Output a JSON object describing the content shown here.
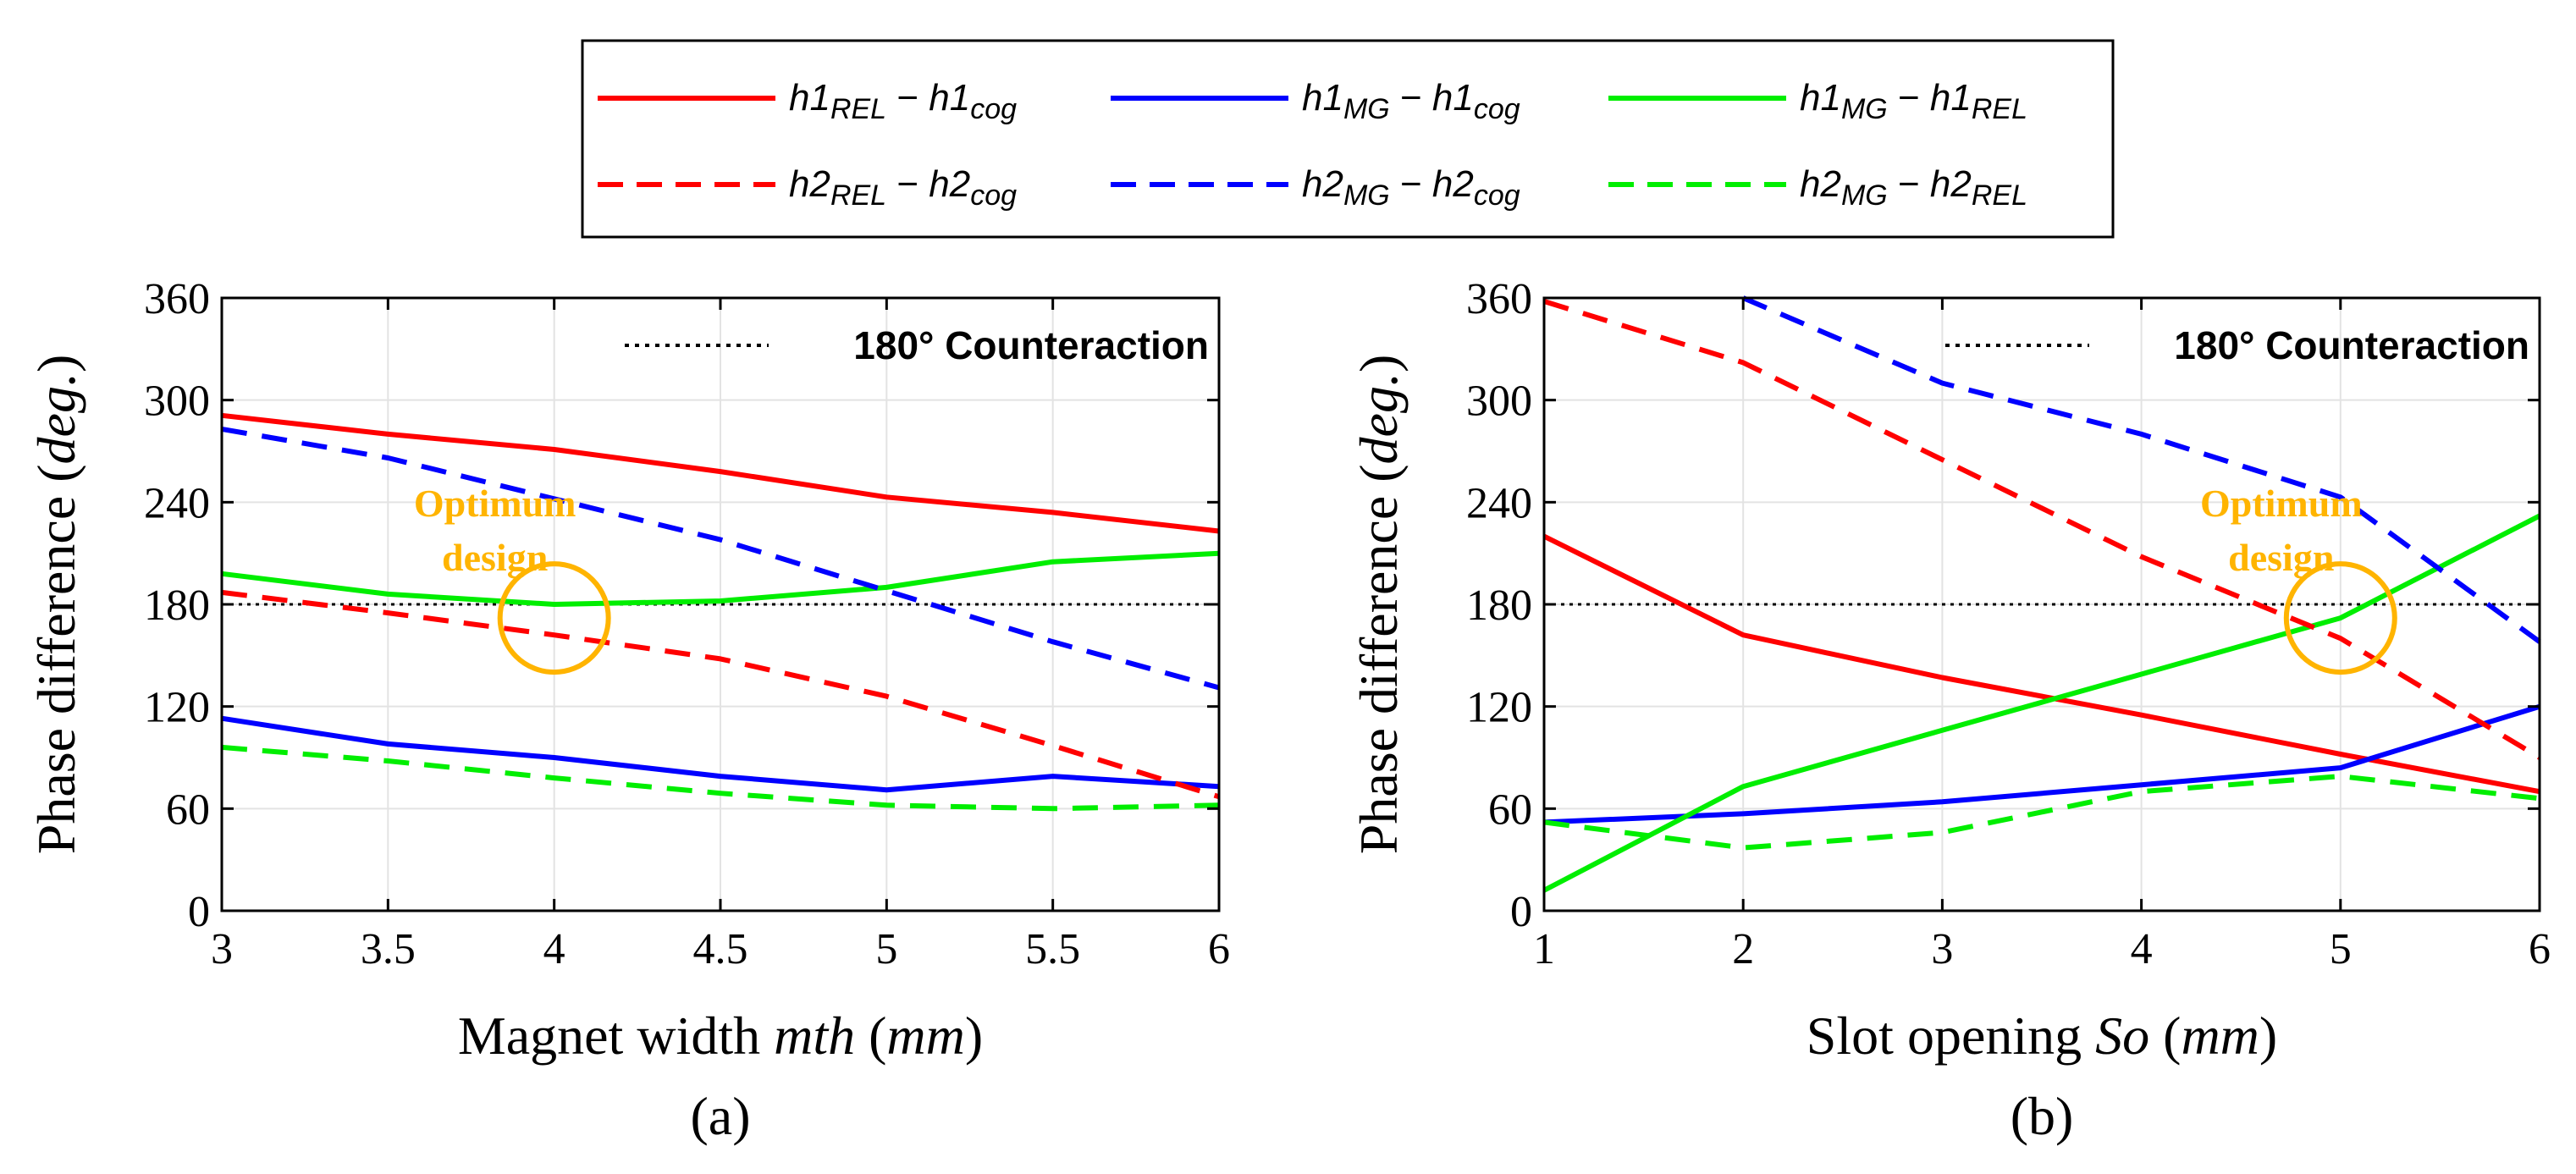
{
  "legend": {
    "entries": [
      {
        "h": "h1",
        "a": "REL",
        "b": "cog",
        "color": "#ff0000",
        "dash": false
      },
      {
        "h": "h1",
        "a": "MG",
        "b": "cog",
        "color": "#0000ff",
        "dash": false
      },
      {
        "h": "h1",
        "a": "MG",
        "b": "REL",
        "color": "#00ee00",
        "dash": false
      },
      {
        "h": "h2",
        "a": "REL",
        "b": "cog",
        "color": "#ff0000",
        "dash": true
      },
      {
        "h": "h2",
        "a": "MG",
        "b": "cog",
        "color": "#0000ff",
        "dash": true
      },
      {
        "h": "h2",
        "a": "MG",
        "b": "REL",
        "color": "#00ee00",
        "dash": true
      }
    ]
  },
  "colors": {
    "red": "#ff0000",
    "blue": "#0000ff",
    "green": "#00ee00",
    "annotation": "#ffb400"
  },
  "chart_data": [
    {
      "type": "line",
      "panel_label": "(a)",
      "xlabel_main": "Magnet width ",
      "xlabel_var": "mth",
      "xlabel_unit": "mm",
      "ylabel_main": "Phase difference (",
      "ylabel_unit": "deg.",
      "xlim": [
        3,
        6
      ],
      "ylim": [
        0,
        360
      ],
      "xticks": [
        3,
        3.5,
        4,
        4.5,
        5,
        5.5,
        6
      ],
      "xtick_labels": [
        "3",
        "3.5",
        "4",
        "4.5",
        "5",
        "5.5",
        "6"
      ],
      "yticks": [
        0,
        60,
        120,
        180,
        240,
        300,
        360
      ],
      "ytick_labels": [
        "0",
        "60",
        "120",
        "180",
        "240",
        "300",
        "360"
      ],
      "grid": true,
      "reference_line": {
        "y": 180,
        "label": "180° Counteraction"
      },
      "annotation": {
        "lines": [
          "Optimum",
          "design"
        ],
        "marker_x": 4,
        "marker_y": 172
      },
      "x": [
        3,
        3.5,
        4,
        4.5,
        5,
        5.5,
        6
      ],
      "series": [
        {
          "name": "h1REL − h1cog",
          "color": "#ff0000",
          "dash": false,
          "values": [
            291,
            280,
            271,
            258,
            243,
            234,
            223
          ]
        },
        {
          "name": "h1MG − h1cog",
          "color": "#0000ff",
          "dash": false,
          "values": [
            113,
            98,
            90,
            79,
            71,
            79,
            73
          ]
        },
        {
          "name": "h1MG − h1REL",
          "color": "#00ee00",
          "dash": false,
          "values": [
            198,
            186,
            180,
            182,
            190,
            205,
            210
          ]
        },
        {
          "name": "h2REL − h2cog",
          "color": "#ff0000",
          "dash": true,
          "values": [
            187,
            175,
            162,
            148,
            126,
            97,
            67
          ]
        },
        {
          "name": "h2MG − h2cog",
          "color": "#0000ff",
          "dash": true,
          "values": [
            283,
            266,
            242,
            218,
            188,
            158,
            131
          ]
        },
        {
          "name": "h2MG − h2REL",
          "color": "#00ee00",
          "dash": true,
          "values": [
            96,
            88,
            78,
            69,
            62,
            60,
            62
          ]
        }
      ]
    },
    {
      "type": "line",
      "panel_label": "(b)",
      "xlabel_main": "Slot opening ",
      "xlabel_var": "So",
      "xlabel_unit": "mm",
      "ylabel_main": "Phase difference (",
      "ylabel_unit": "deg.",
      "xlim": [
        1,
        6
      ],
      "ylim": [
        0,
        360
      ],
      "xticks": [
        1,
        2,
        3,
        4,
        5,
        6
      ],
      "xtick_labels": [
        "1",
        "2",
        "3",
        "4",
        "5",
        "6"
      ],
      "yticks": [
        0,
        60,
        120,
        180,
        240,
        300,
        360
      ],
      "ytick_labels": [
        "0",
        "60",
        "120",
        "180",
        "240",
        "300",
        "360"
      ],
      "grid": true,
      "reference_line": {
        "y": 180,
        "label": "180° Counteraction"
      },
      "annotation": {
        "lines": [
          "Optimum",
          "design"
        ],
        "marker_x": 5,
        "marker_y": 172
      },
      "x": [
        1,
        2,
        3,
        4,
        5,
        6
      ],
      "series": [
        {
          "name": "h1REL − h1cog",
          "color": "#ff0000",
          "dash": false,
          "values": [
            220,
            162,
            137,
            115,
            92,
            70
          ]
        },
        {
          "name": "h1MG − h1cog",
          "color": "#0000ff",
          "dash": false,
          "values": [
            52,
            57,
            64,
            74,
            84,
            120
          ]
        },
        {
          "name": "h1MG − h1REL",
          "color": "#00ee00",
          "dash": false,
          "values": [
            12,
            73,
            106,
            139,
            172,
            232
          ]
        },
        {
          "name": "h2REL − h2cog",
          "color": "#ff0000",
          "dash": true,
          "values": [
            358,
            322,
            265,
            208,
            160,
            90
          ]
        },
        {
          "name": "h2MG − h2cog",
          "color": "#0000ff",
          "dash": true,
          "values": [
            null,
            360,
            310,
            280,
            243,
            158
          ]
        },
        {
          "name": "h2MG − h2REL",
          "color": "#00ee00",
          "dash": true,
          "values": [
            52,
            37,
            46,
            70,
            79,
            66
          ]
        }
      ]
    }
  ]
}
